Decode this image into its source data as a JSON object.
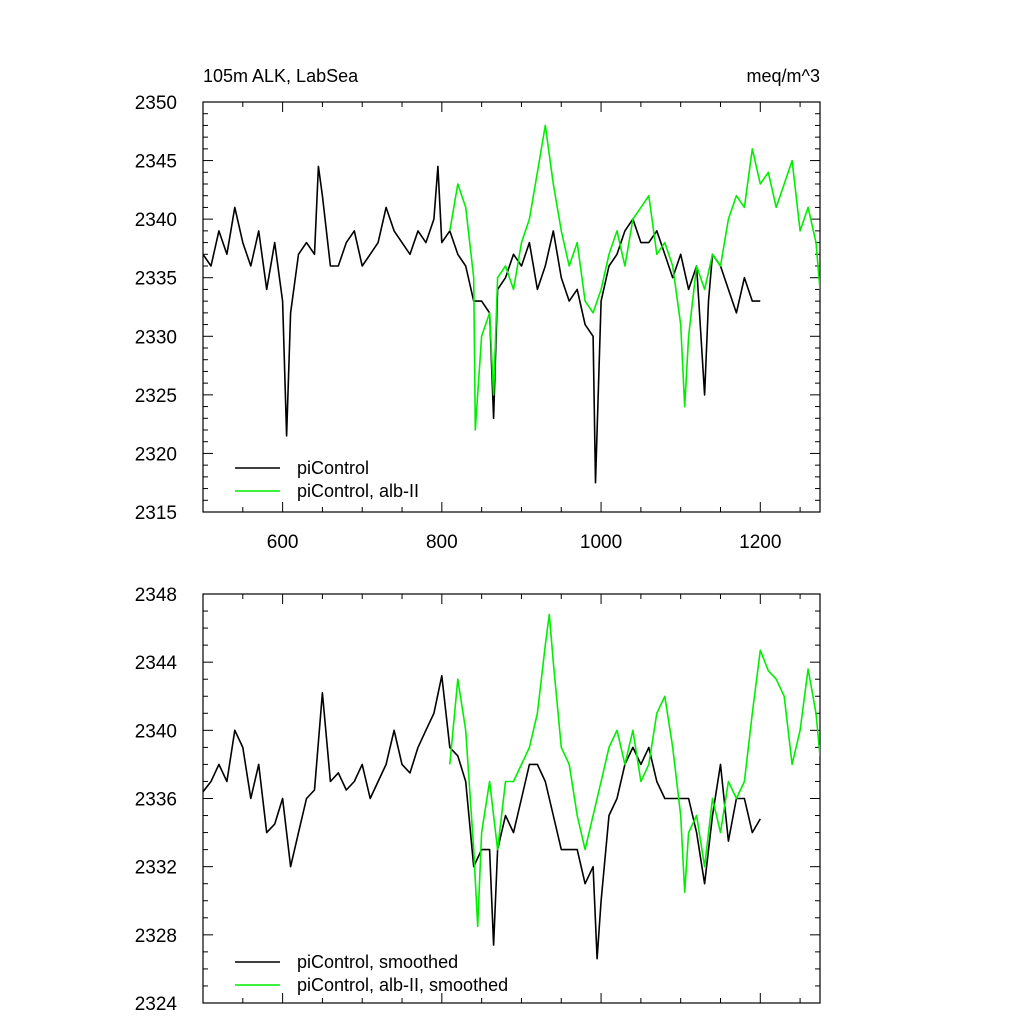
{
  "chart_data": [
    {
      "type": "line",
      "title": "105m ALK, LabSea",
      "units": "meq/m^3",
      "xlabel": "",
      "ylabel": "",
      "xlim": [
        500,
        1275
      ],
      "ylim": [
        2315,
        2350
      ],
      "xticks": [
        600,
        800,
        1000,
        1200
      ],
      "yticks": [
        2315,
        2320,
        2325,
        2330,
        2335,
        2340,
        2345,
        2350
      ],
      "legend_position": "bottom-left",
      "series": [
        {
          "name": "piControl",
          "color": "#000000",
          "x": [
            500,
            510,
            520,
            530,
            540,
            550,
            560,
            570,
            580,
            590,
            600,
            605,
            610,
            620,
            630,
            640,
            645,
            650,
            660,
            670,
            680,
            690,
            700,
            710,
            720,
            730,
            740,
            750,
            760,
            770,
            780,
            790,
            795,
            800,
            810,
            820,
            830,
            840,
            850,
            860,
            865,
            870,
            880,
            890,
            900,
            910,
            920,
            930,
            940,
            950,
            960,
            970,
            980,
            990,
            993,
            1000,
            1010,
            1020,
            1030,
            1040,
            1050,
            1060,
            1070,
            1080,
            1090,
            1100,
            1110,
            1120,
            1130,
            1135,
            1140,
            1150,
            1160,
            1170,
            1180,
            1190,
            1200
          ],
          "values": [
            2337,
            2336,
            2339,
            2337,
            2341,
            2338,
            2336,
            2339,
            2334,
            2338,
            2333,
            2321.5,
            2332,
            2337,
            2338,
            2337,
            2344.5,
            2342,
            2336,
            2336,
            2338,
            2339,
            2336,
            2337,
            2338,
            2341,
            2339,
            2338,
            2337,
            2339,
            2338,
            2340,
            2344.5,
            2338,
            2339,
            2337,
            2336,
            2333,
            2333,
            2332,
            2323,
            2334,
            2335,
            2337,
            2336,
            2338,
            2334,
            2336,
            2339,
            2335,
            2333,
            2334,
            2331,
            2330,
            2317.5,
            2333,
            2336,
            2337,
            2339,
            2340,
            2338,
            2338,
            2339,
            2337,
            2335,
            2337,
            2334,
            2336,
            2325,
            2333,
            2337,
            2336,
            2334,
            2332,
            2335,
            2333,
            2333
          ]
        },
        {
          "name": "piControl, alb-II",
          "color": "#00ee00",
          "x": [
            810,
            820,
            830,
            840,
            842,
            850,
            860,
            865,
            870,
            880,
            890,
            900,
            910,
            920,
            930,
            940,
            950,
            960,
            970,
            980,
            990,
            1000,
            1010,
            1020,
            1030,
            1040,
            1050,
            1060,
            1070,
            1080,
            1090,
            1100,
            1105,
            1110,
            1120,
            1130,
            1140,
            1150,
            1160,
            1170,
            1180,
            1190,
            1200,
            1210,
            1220,
            1230,
            1240,
            1250,
            1260,
            1270,
            1275
          ],
          "values": [
            2339,
            2343,
            2341,
            2335,
            2322,
            2330,
            2332,
            2325,
            2335,
            2336,
            2334,
            2338,
            2340,
            2344,
            2348,
            2343,
            2339,
            2336,
            2338,
            2333,
            2332,
            2334,
            2337,
            2339,
            2336,
            2340,
            2341,
            2342,
            2337,
            2338,
            2336,
            2331,
            2324,
            2330,
            2336,
            2334,
            2337,
            2336,
            2340,
            2342,
            2341,
            2346,
            2343,
            2344,
            2341,
            2343,
            2345,
            2339,
            2341,
            2338,
            2334
          ]
        }
      ]
    },
    {
      "type": "line",
      "title": "",
      "xlabel": "",
      "ylabel": "",
      "xlim": [
        500,
        1275
      ],
      "ylim": [
        2324,
        2348
      ],
      "yticks": [
        2324,
        2328,
        2332,
        2336,
        2340,
        2344,
        2348
      ],
      "legend_position": "bottom-left",
      "series": [
        {
          "name": "piControl, smoothed",
          "color": "#000000",
          "x": [
            500,
            510,
            520,
            530,
            540,
            550,
            560,
            570,
            580,
            590,
            600,
            610,
            620,
            630,
            640,
            650,
            660,
            670,
            680,
            690,
            700,
            710,
            720,
            730,
            740,
            750,
            760,
            770,
            780,
            790,
            800,
            810,
            820,
            830,
            840,
            850,
            860,
            865,
            870,
            880,
            890,
            900,
            910,
            920,
            930,
            940,
            950,
            960,
            970,
            980,
            990,
            995,
            1000,
            1010,
            1020,
            1030,
            1040,
            1050,
            1060,
            1070,
            1080,
            1090,
            1100,
            1110,
            1120,
            1130,
            1140,
            1150,
            1160,
            1170,
            1180,
            1190,
            1200
          ],
          "values": [
            2336.4,
            2337,
            2338,
            2337,
            2340,
            2339,
            2336,
            2338,
            2334,
            2334.5,
            2336,
            2332,
            2334,
            2336,
            2336.5,
            2342.2,
            2337,
            2337.5,
            2336.5,
            2337,
            2338,
            2336,
            2337,
            2338,
            2340,
            2338,
            2337.5,
            2339,
            2340,
            2341,
            2343.2,
            2339,
            2338.5,
            2337,
            2332,
            2333,
            2333,
            2327.4,
            2333,
            2335,
            2334,
            2336,
            2338,
            2338,
            2337,
            2335,
            2333,
            2333,
            2333,
            2331,
            2332,
            2326.6,
            2330,
            2335,
            2336,
            2338,
            2339,
            2338,
            2339,
            2337,
            2336,
            2336,
            2336,
            2336,
            2334,
            2331,
            2335,
            2338,
            2333.5,
            2336,
            2336,
            2334,
            2334.8
          ]
        },
        {
          "name": "piControl, alb-II, smoothed",
          "color": "#00ee00",
          "x": [
            810,
            820,
            830,
            840,
            845,
            850,
            860,
            870,
            880,
            890,
            900,
            910,
            920,
            930,
            935,
            940,
            950,
            960,
            970,
            980,
            990,
            1000,
            1010,
            1020,
            1030,
            1040,
            1050,
            1060,
            1070,
            1080,
            1090,
            1100,
            1105,
            1110,
            1120,
            1130,
            1140,
            1150,
            1160,
            1170,
            1180,
            1190,
            1200,
            1210,
            1220,
            1230,
            1240,
            1250,
            1260,
            1270,
            1275
          ],
          "values": [
            2338,
            2343,
            2340,
            2333,
            2328.5,
            2334,
            2337,
            2333,
            2337,
            2337,
            2338,
            2339,
            2341,
            2345,
            2346.8,
            2344,
            2339,
            2338,
            2335,
            2333,
            2335,
            2337,
            2339,
            2340,
            2338,
            2340,
            2337,
            2338,
            2341,
            2342,
            2339,
            2335,
            2330.5,
            2334,
            2335,
            2332,
            2336,
            2334,
            2337,
            2336,
            2337,
            2341,
            2344.7,
            2343.5,
            2343,
            2342,
            2338,
            2340,
            2343.6,
            2341,
            2338.5
          ]
        }
      ]
    }
  ]
}
